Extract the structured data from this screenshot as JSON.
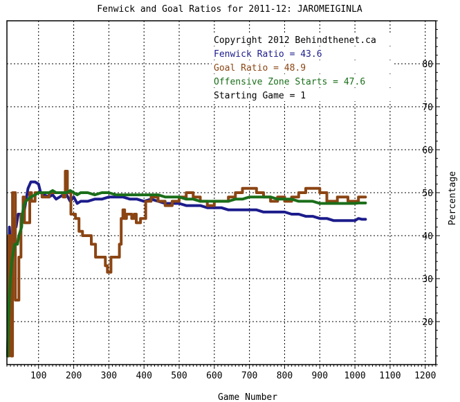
{
  "chart_data": {
    "type": "line",
    "title": "Fenwick and Goal Ratios for 2011-12: JAROMEIGINLA",
    "xlabel": "Game Number",
    "ylabel": "Percentage",
    "xlim": [
      10,
      1230
    ],
    "ylim": [
      10,
      90
    ],
    "x_ticks": [
      100,
      200,
      300,
      400,
      500,
      600,
      700,
      800,
      900,
      1000,
      1100,
      1200
    ],
    "y_ticks": [
      20,
      30,
      40,
      50,
      60,
      70,
      80
    ],
    "grid": true,
    "legend_position": "top-right",
    "legend": [
      {
        "text": "Copyright 2012 Behindthenet.ca",
        "color": "#000000"
      },
      {
        "text": "Fenwick Ratio = 43.6",
        "color": "#1c1c8c"
      },
      {
        "text": "Goal Ratio = 48.9",
        "color": "#8b4513"
      },
      {
        "text": "Offensive Zone Starts = 47.6",
        "color": "#1a6e1a"
      },
      {
        "text": "Starting Game = 1",
        "color": "#000000"
      }
    ],
    "series": [
      {
        "name": "Fenwick Ratio",
        "color": "#1c1c8c",
        "points": [
          [
            12,
            12
          ],
          [
            15,
            25
          ],
          [
            17,
            42
          ],
          [
            20,
            38
          ],
          [
            24,
            36
          ],
          [
            28,
            40
          ],
          [
            32,
            44
          ],
          [
            36,
            42
          ],
          [
            42,
            45
          ],
          [
            50,
            45
          ],
          [
            58,
            45
          ],
          [
            64,
            48
          ],
          [
            70,
            51
          ],
          [
            78,
            52.5
          ],
          [
            90,
            52.5
          ],
          [
            100,
            52
          ],
          [
            106,
            50
          ],
          [
            115,
            49.5
          ],
          [
            130,
            49
          ],
          [
            140,
            49.5
          ],
          [
            150,
            48.5
          ],
          [
            160,
            49
          ],
          [
            170,
            49.5
          ],
          [
            180,
            49.5
          ],
          [
            190,
            48
          ],
          [
            200,
            49
          ],
          [
            210,
            47.5
          ],
          [
            220,
            48
          ],
          [
            240,
            48
          ],
          [
            260,
            48.5
          ],
          [
            280,
            48.5
          ],
          [
            300,
            49
          ],
          [
            320,
            49
          ],
          [
            340,
            49
          ],
          [
            360,
            48.5
          ],
          [
            380,
            48.5
          ],
          [
            400,
            48
          ],
          [
            420,
            48.5
          ],
          [
            440,
            48
          ],
          [
            460,
            47.5
          ],
          [
            480,
            47.5
          ],
          [
            500,
            47.5
          ],
          [
            520,
            47
          ],
          [
            540,
            47
          ],
          [
            560,
            47
          ],
          [
            580,
            46.5
          ],
          [
            600,
            46.5
          ],
          [
            620,
            46.5
          ],
          [
            640,
            46
          ],
          [
            660,
            46
          ],
          [
            680,
            46
          ],
          [
            700,
            46
          ],
          [
            720,
            46
          ],
          [
            740,
            45.5
          ],
          [
            760,
            45.5
          ],
          [
            780,
            45.5
          ],
          [
            800,
            45.5
          ],
          [
            820,
            45
          ],
          [
            840,
            45
          ],
          [
            860,
            44.5
          ],
          [
            880,
            44.5
          ],
          [
            900,
            44
          ],
          [
            920,
            44
          ],
          [
            940,
            43.5
          ],
          [
            960,
            43.5
          ],
          [
            980,
            43.5
          ],
          [
            1000,
            43.5
          ],
          [
            1010,
            44
          ],
          [
            1020,
            43.8
          ],
          [
            1030,
            43.8
          ]
        ]
      },
      {
        "name": "Goal Ratio",
        "color": "#8b4513",
        "points": [
          [
            12,
            12
          ],
          [
            15,
            12
          ],
          [
            15,
            40
          ],
          [
            22,
            40
          ],
          [
            22,
            12
          ],
          [
            26,
            12
          ],
          [
            26,
            50
          ],
          [
            34,
            50
          ],
          [
            34,
            25
          ],
          [
            44,
            25
          ],
          [
            44,
            35
          ],
          [
            50,
            35
          ],
          [
            50,
            45
          ],
          [
            56,
            45
          ],
          [
            56,
            49
          ],
          [
            60,
            49
          ],
          [
            60,
            43
          ],
          [
            75,
            43
          ],
          [
            75,
            50
          ],
          [
            80,
            50
          ],
          [
            80,
            48
          ],
          [
            90,
            48
          ],
          [
            90,
            50
          ],
          [
            110,
            50
          ],
          [
            110,
            49
          ],
          [
            130,
            49
          ],
          [
            130,
            50
          ],
          [
            150,
            50
          ],
          [
            150,
            50
          ],
          [
            170,
            50
          ],
          [
            170,
            49
          ],
          [
            176,
            49
          ],
          [
            176,
            55
          ],
          [
            182,
            55
          ],
          [
            182,
            50
          ],
          [
            192,
            50
          ],
          [
            192,
            45
          ],
          [
            205,
            45
          ],
          [
            205,
            44
          ],
          [
            215,
            44
          ],
          [
            215,
            41
          ],
          [
            225,
            41
          ],
          [
            225,
            40
          ],
          [
            250,
            40
          ],
          [
            250,
            38
          ],
          [
            262,
            38
          ],
          [
            262,
            35
          ],
          [
            290,
            35
          ],
          [
            290,
            33
          ],
          [
            296,
            33
          ],
          [
            296,
            31.5
          ],
          [
            306,
            31.5
          ],
          [
            306,
            35
          ],
          [
            330,
            35
          ],
          [
            330,
            38
          ],
          [
            335,
            38
          ],
          [
            335,
            44
          ],
          [
            340,
            44
          ],
          [
            340,
            46
          ],
          [
            345,
            46
          ],
          [
            345,
            44
          ],
          [
            350,
            44
          ],
          [
            350,
            45
          ],
          [
            365,
            45
          ],
          [
            365,
            44
          ],
          [
            372,
            44
          ],
          [
            372,
            45
          ],
          [
            378,
            45
          ],
          [
            378,
            43
          ],
          [
            390,
            43
          ],
          [
            390,
            44
          ],
          [
            405,
            44
          ],
          [
            405,
            48
          ],
          [
            420,
            48
          ],
          [
            420,
            49
          ],
          [
            440,
            49
          ],
          [
            440,
            48
          ],
          [
            460,
            48
          ],
          [
            460,
            47
          ],
          [
            480,
            47
          ],
          [
            480,
            48
          ],
          [
            500,
            48
          ],
          [
            500,
            49
          ],
          [
            520,
            49
          ],
          [
            520,
            50
          ],
          [
            540,
            50
          ],
          [
            540,
            49
          ],
          [
            560,
            49
          ],
          [
            560,
            48
          ],
          [
            580,
            48
          ],
          [
            580,
            47
          ],
          [
            600,
            47
          ],
          [
            600,
            48
          ],
          [
            620,
            48
          ],
          [
            620,
            48
          ],
          [
            640,
            48
          ],
          [
            640,
            49
          ],
          [
            660,
            49
          ],
          [
            660,
            50
          ],
          [
            680,
            50
          ],
          [
            680,
            51
          ],
          [
            720,
            51
          ],
          [
            720,
            50
          ],
          [
            740,
            50
          ],
          [
            740,
            49
          ],
          [
            760,
            49
          ],
          [
            760,
            48
          ],
          [
            780,
            48
          ],
          [
            780,
            49
          ],
          [
            800,
            49
          ],
          [
            800,
            48
          ],
          [
            820,
            48
          ],
          [
            820,
            49
          ],
          [
            840,
            49
          ],
          [
            840,
            50
          ],
          [
            860,
            50
          ],
          [
            860,
            51
          ],
          [
            900,
            51
          ],
          [
            900,
            50
          ],
          [
            920,
            50
          ],
          [
            920,
            48
          ],
          [
            950,
            48
          ],
          [
            950,
            49
          ],
          [
            980,
            49
          ],
          [
            980,
            48
          ],
          [
            1010,
            48
          ],
          [
            1010,
            49
          ],
          [
            1030,
            49
          ]
        ]
      },
      {
        "name": "Offensive Zone Starts",
        "color": "#1a6e1a",
        "points": [
          [
            12,
            12
          ],
          [
            14,
            20
          ],
          [
            17,
            26
          ],
          [
            20,
            30
          ],
          [
            24,
            34
          ],
          [
            28,
            36
          ],
          [
            32,
            38
          ],
          [
            36,
            38
          ],
          [
            40,
            38
          ],
          [
            44,
            40
          ],
          [
            48,
            41
          ],
          [
            52,
            42
          ],
          [
            54,
            45
          ],
          [
            58,
            47
          ],
          [
            64,
            48
          ],
          [
            70,
            48.5
          ],
          [
            78,
            49
          ],
          [
            90,
            49.5
          ],
          [
            100,
            50
          ],
          [
            110,
            50
          ],
          [
            120,
            50
          ],
          [
            130,
            50
          ],
          [
            140,
            50.5
          ],
          [
            150,
            50
          ],
          [
            160,
            50
          ],
          [
            170,
            50
          ],
          [
            180,
            50
          ],
          [
            190,
            50.5
          ],
          [
            200,
            50
          ],
          [
            210,
            49.5
          ],
          [
            220,
            50
          ],
          [
            240,
            50
          ],
          [
            260,
            49.5
          ],
          [
            280,
            50
          ],
          [
            300,
            50
          ],
          [
            320,
            49.5
          ],
          [
            340,
            49.5
          ],
          [
            360,
            49.5
          ],
          [
            380,
            49.5
          ],
          [
            400,
            49.5
          ],
          [
            420,
            49.5
          ],
          [
            440,
            49.5
          ],
          [
            460,
            49
          ],
          [
            480,
            49
          ],
          [
            500,
            49
          ],
          [
            520,
            48.5
          ],
          [
            540,
            48.5
          ],
          [
            560,
            48
          ],
          [
            580,
            48
          ],
          [
            600,
            48
          ],
          [
            620,
            48
          ],
          [
            640,
            48
          ],
          [
            660,
            48.5
          ],
          [
            680,
            48.5
          ],
          [
            700,
            49
          ],
          [
            720,
            49
          ],
          [
            740,
            49
          ],
          [
            760,
            49
          ],
          [
            780,
            48.5
          ],
          [
            800,
            48.5
          ],
          [
            820,
            48.5
          ],
          [
            840,
            48
          ],
          [
            860,
            48
          ],
          [
            880,
            48
          ],
          [
            900,
            47.5
          ],
          [
            920,
            47.5
          ],
          [
            940,
            47.5
          ],
          [
            960,
            47.5
          ],
          [
            980,
            47.5
          ],
          [
            1000,
            47.5
          ],
          [
            1010,
            47.6
          ],
          [
            1020,
            47.6
          ],
          [
            1030,
            47.6
          ]
        ]
      }
    ]
  }
}
